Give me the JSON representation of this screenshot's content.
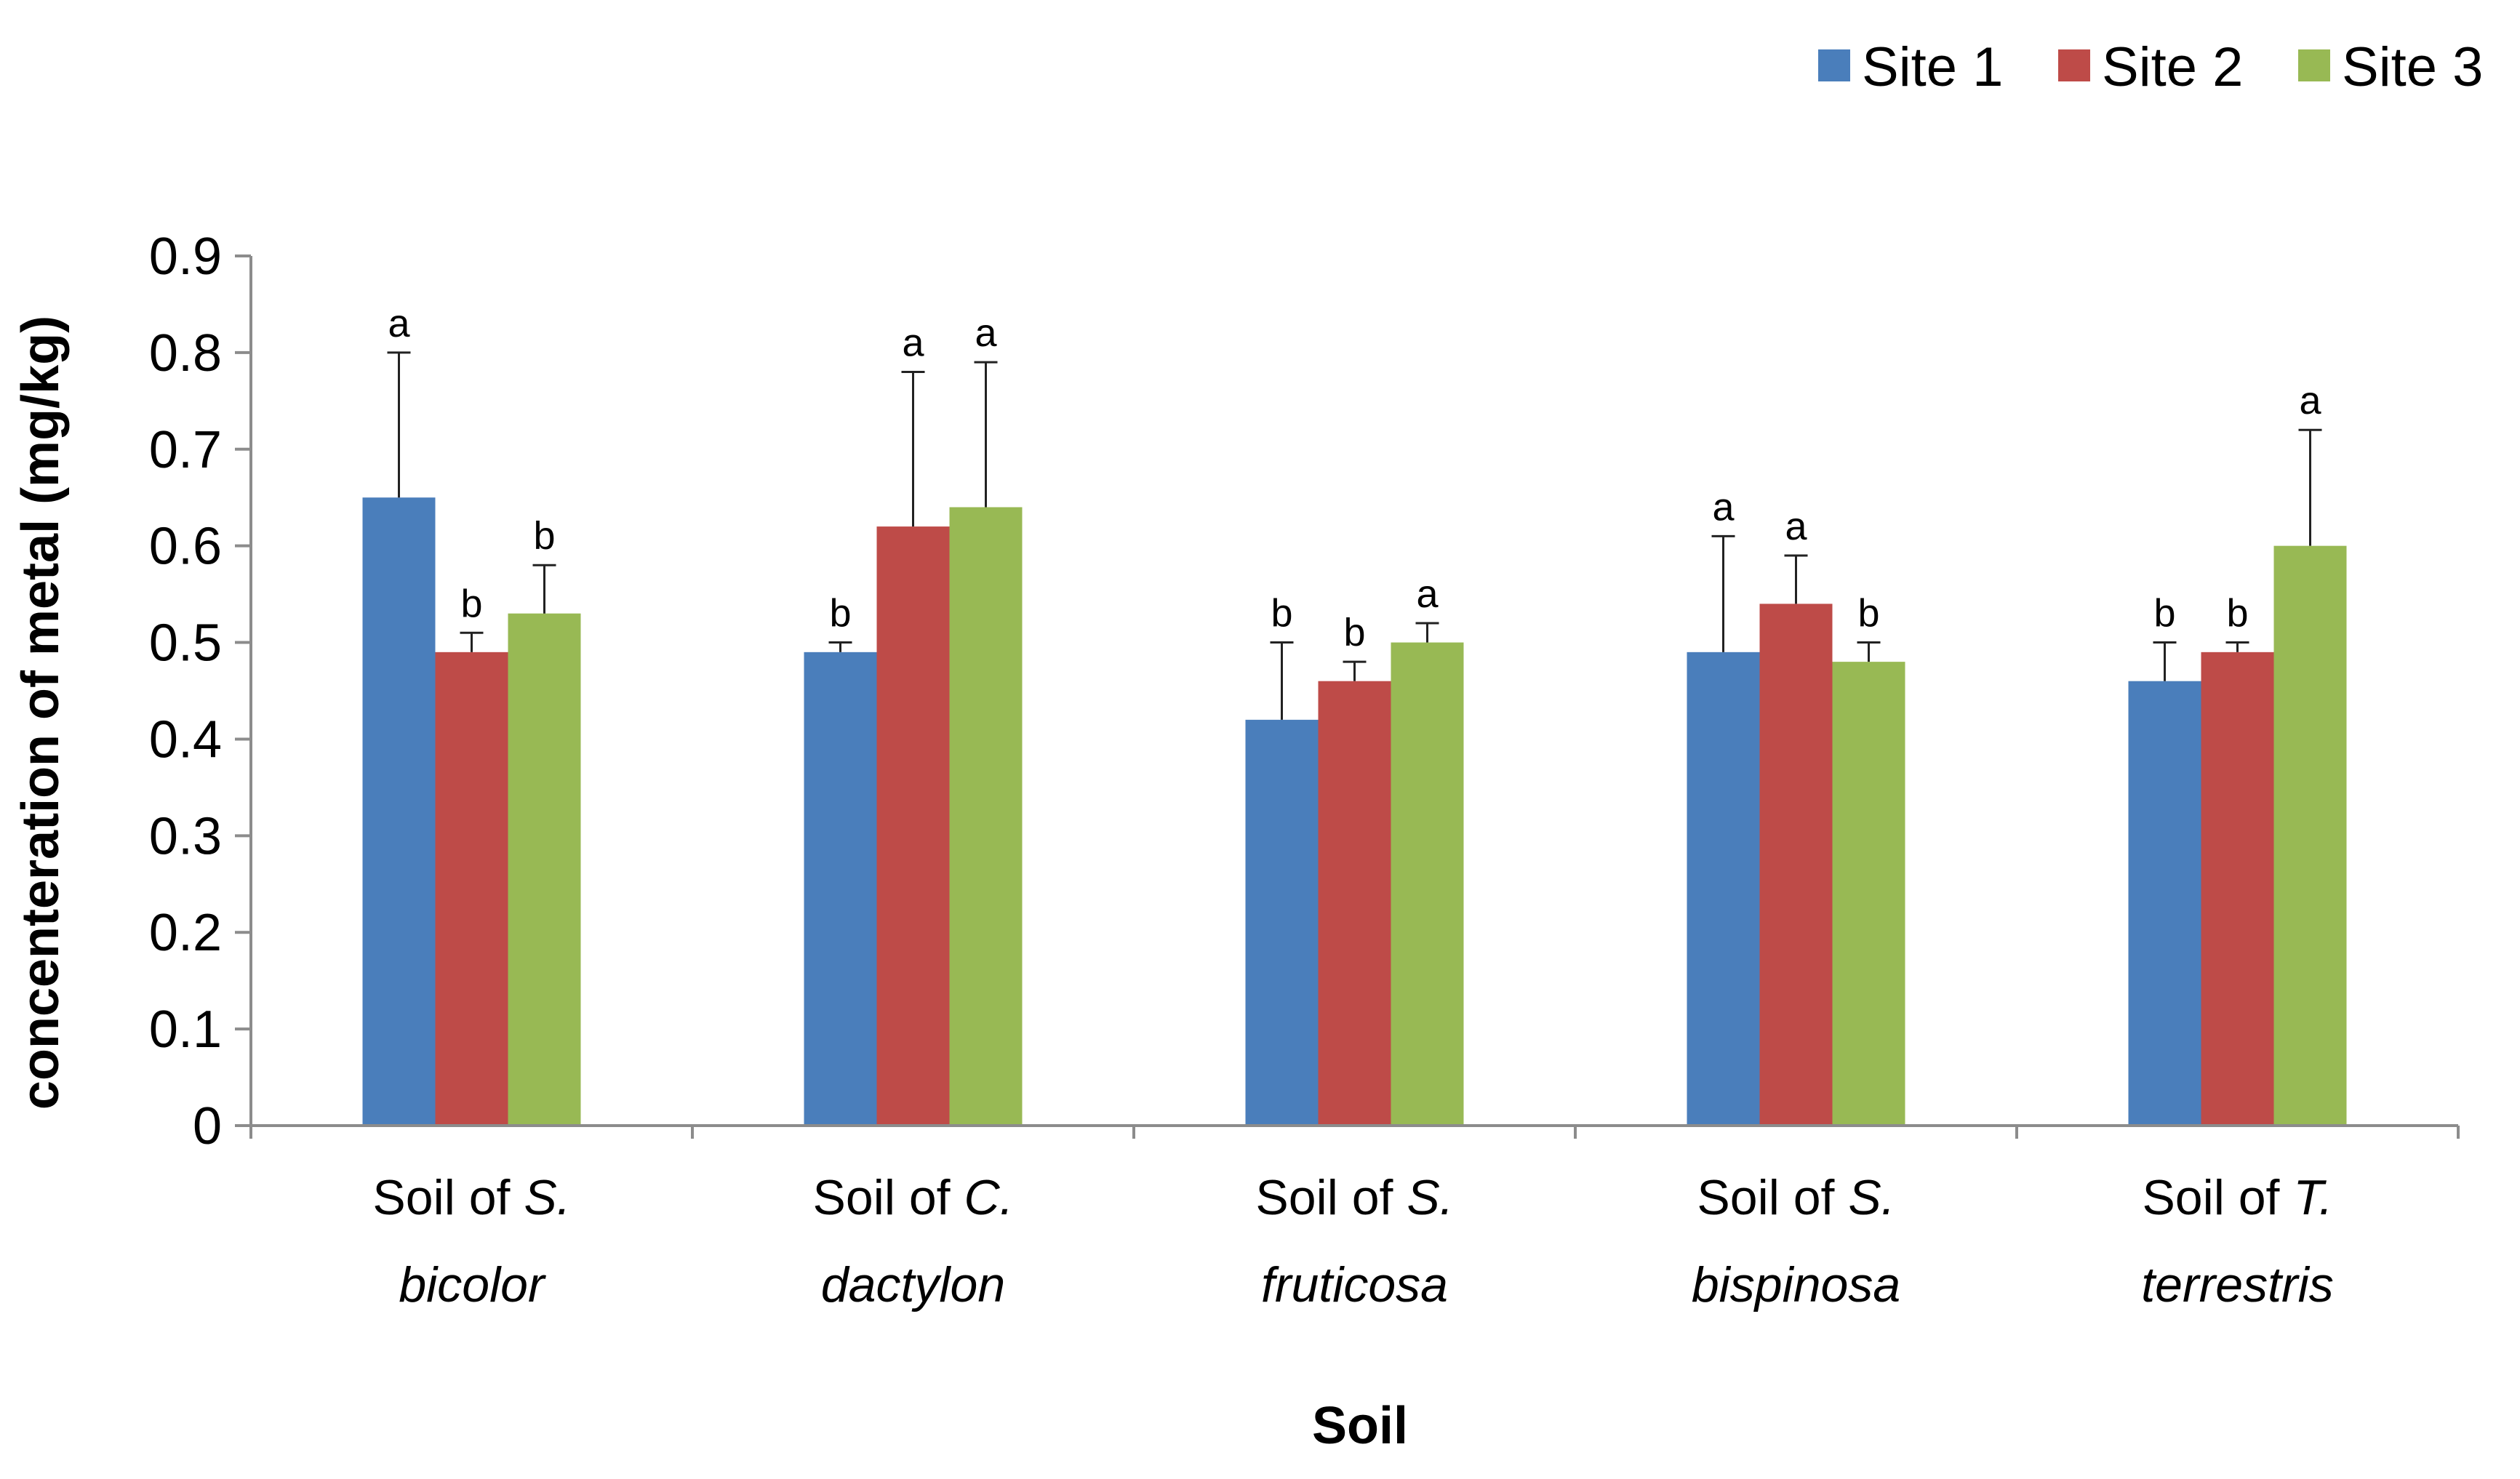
{
  "chart_data": {
    "type": "bar",
    "title": "",
    "xlabel": "Soil",
    "ylabel": "concenteration of metal (mg/kg)",
    "ylim": [
      0,
      0.9
    ],
    "yticks": [
      "0",
      "0.1",
      "0.2",
      "0.3",
      "0.4",
      "0.5",
      "0.6",
      "0.7",
      "0.8",
      "0.9"
    ],
    "grid": false,
    "legend_position": "top-right",
    "categories": [
      {
        "prefix": "Soil of ",
        "genus": "S.",
        "species": "bicolor"
      },
      {
        "prefix": "Soil of ",
        "genus": "C.",
        "species": "dactylon"
      },
      {
        "prefix": "Soil of ",
        "genus": "S.",
        "species": "fruticosa"
      },
      {
        "prefix": "Soil of ",
        "genus": "S.",
        "species": "bispinosa"
      },
      {
        "prefix": "Soil of ",
        "genus": "T.",
        "species": "terrestris"
      }
    ],
    "series": [
      {
        "name": "Site 1",
        "color": "#4A7EBB",
        "values": [
          0.65,
          0.49,
          0.42,
          0.49,
          0.46
        ],
        "error_upper": [
          0.8,
          0.5,
          0.5,
          0.61,
          0.5
        ],
        "labels": [
          "a",
          "b",
          "b",
          "a",
          "b"
        ]
      },
      {
        "name": "Site 2",
        "color": "#BE4B48",
        "values": [
          0.49,
          0.62,
          0.46,
          0.54,
          0.49
        ],
        "error_upper": [
          0.51,
          0.78,
          0.48,
          0.59,
          0.5
        ],
        "labels": [
          "b",
          "a",
          "b",
          "a",
          "b"
        ]
      },
      {
        "name": "Site 3",
        "color": "#98B954",
        "values": [
          0.53,
          0.64,
          0.5,
          0.48,
          0.6
        ],
        "error_upper": [
          0.58,
          0.79,
          0.52,
          0.5,
          0.72
        ],
        "labels": [
          "b",
          "a",
          "a",
          "b",
          "a"
        ]
      }
    ]
  }
}
